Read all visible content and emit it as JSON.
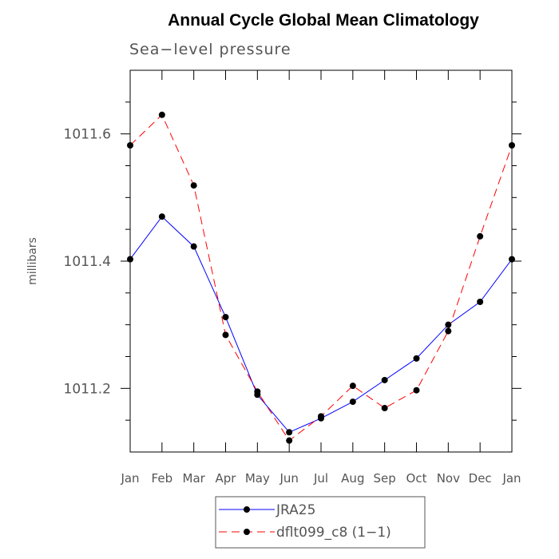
{
  "chart_data": {
    "type": "line",
    "title": "Annual Cycle Global Mean Climatology",
    "subtitle": "Sea−level pressure",
    "ylabel": "millibars",
    "xlabel": "",
    "categories": [
      "Jan",
      "Feb",
      "Mar",
      "Apr",
      "May",
      "Jun",
      "Jul",
      "Aug",
      "Sep",
      "Oct",
      "Nov",
      "Dec",
      "Jan"
    ],
    "ylim": [
      1011.1,
      1011.7
    ],
    "y_major_ticks": [
      1011.2,
      1011.4,
      1011.6
    ],
    "y_tick_labels": [
      "1011.2",
      "1011.4",
      "1011.6"
    ],
    "y_minor_step": 0.05,
    "grid": false,
    "legend_position": "bottom-center",
    "series": [
      {
        "name": "JRA25",
        "color": "#0000ff",
        "dash": "solid",
        "values": [
          1011.403,
          1011.47,
          1011.423,
          1011.312,
          1011.19,
          1011.131,
          1011.153,
          1011.179,
          1011.213,
          1011.247,
          1011.3,
          1011.336,
          1011.403
        ]
      },
      {
        "name": "dflt099_c8 (1−1)",
        "color": "#ff0000",
        "dash": "dashed",
        "values": [
          1011.582,
          1011.63,
          1011.519,
          1011.284,
          1011.195,
          1011.118,
          1011.156,
          1011.204,
          1011.169,
          1011.197,
          1011.29,
          1011.439,
          1011.582
        ]
      }
    ],
    "marker_color": "#000000"
  }
}
